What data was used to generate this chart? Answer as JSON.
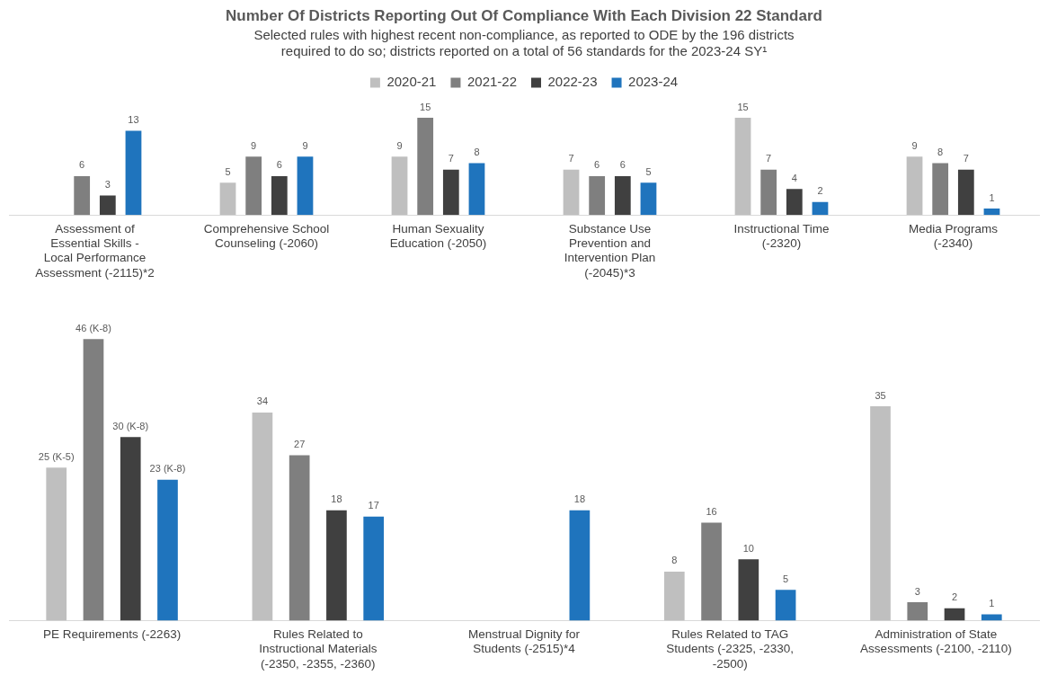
{
  "chart_data": [
    {
      "type": "bar",
      "title": "Number Of Districts Reporting Out Of Compliance With Each Division 22 Standard",
      "subtitle": "Selected rules with highest recent non-compliance, as reported to ODE by the 196 districts required to do so; districts reported on a total of 56 standards for the 2023-24 SY¹",
      "legend": "top",
      "data_labels": true,
      "grid": false,
      "categories": [
        "Assessment of Essential Skills - Local Performance Assessment (-2115)*2",
        "Comprehensive School Counseling (-2060)",
        "Human Sexuality Education (-2050)",
        "Substance Use Prevention and Intervention Plan (-2045)*3",
        "Instructional Time (-2320)",
        "Media Programs (-2340)"
      ],
      "series": [
        {
          "name": "2020-21",
          "color": "#bfbfbf",
          "values": [
            null,
            5,
            9,
            7,
            15,
            9
          ]
        },
        {
          "name": "2021-22",
          "color": "#7f7f7f",
          "values": [
            6,
            9,
            15,
            6,
            7,
            8
          ]
        },
        {
          "name": "2022-23",
          "color": "#404040",
          "values": [
            3,
            6,
            7,
            6,
            4,
            7
          ]
        },
        {
          "name": "2023-24",
          "color": "#1f74bd",
          "values": [
            13,
            9,
            8,
            5,
            2,
            1
          ]
        }
      ]
    },
    {
      "type": "bar",
      "legend": false,
      "grid": false,
      "categories": [
        "PE Requirements (-2263)",
        "Rules Related to Instructional Materials (-2350, -2355, -2360)",
        "Menstrual Dignity for Students (-2515)*4",
        "Rules Related to TAG Students (-2325, -2330, -2500)",
        "Administration of State Assessments (-2100, -2110)"
      ],
      "series": [
        {
          "color": "#bfbfbf",
          "values": [
            25,
            34,
            null,
            8,
            35
          ],
          "value_labels": [
            "25 (K-5)",
            "34",
            null,
            "8",
            "35"
          ]
        },
        {
          "color": "#7f7f7f",
          "values": [
            46,
            27,
            null,
            16,
            3
          ],
          "value_labels": [
            "46 (K-8)",
            "27",
            null,
            "16",
            "3"
          ]
        },
        {
          "color": "#404040",
          "values": [
            30,
            18,
            null,
            10,
            2
          ],
          "value_labels": [
            "30 (K-8)",
            "18",
            null,
            "10",
            "2"
          ]
        },
        {
          "color": "#1f74bd",
          "values": [
            23,
            17,
            18,
            5,
            1
          ],
          "value_labels": [
            "23 (K-8)",
            "17",
            "18",
            "5",
            "1"
          ]
        }
      ]
    }
  ]
}
